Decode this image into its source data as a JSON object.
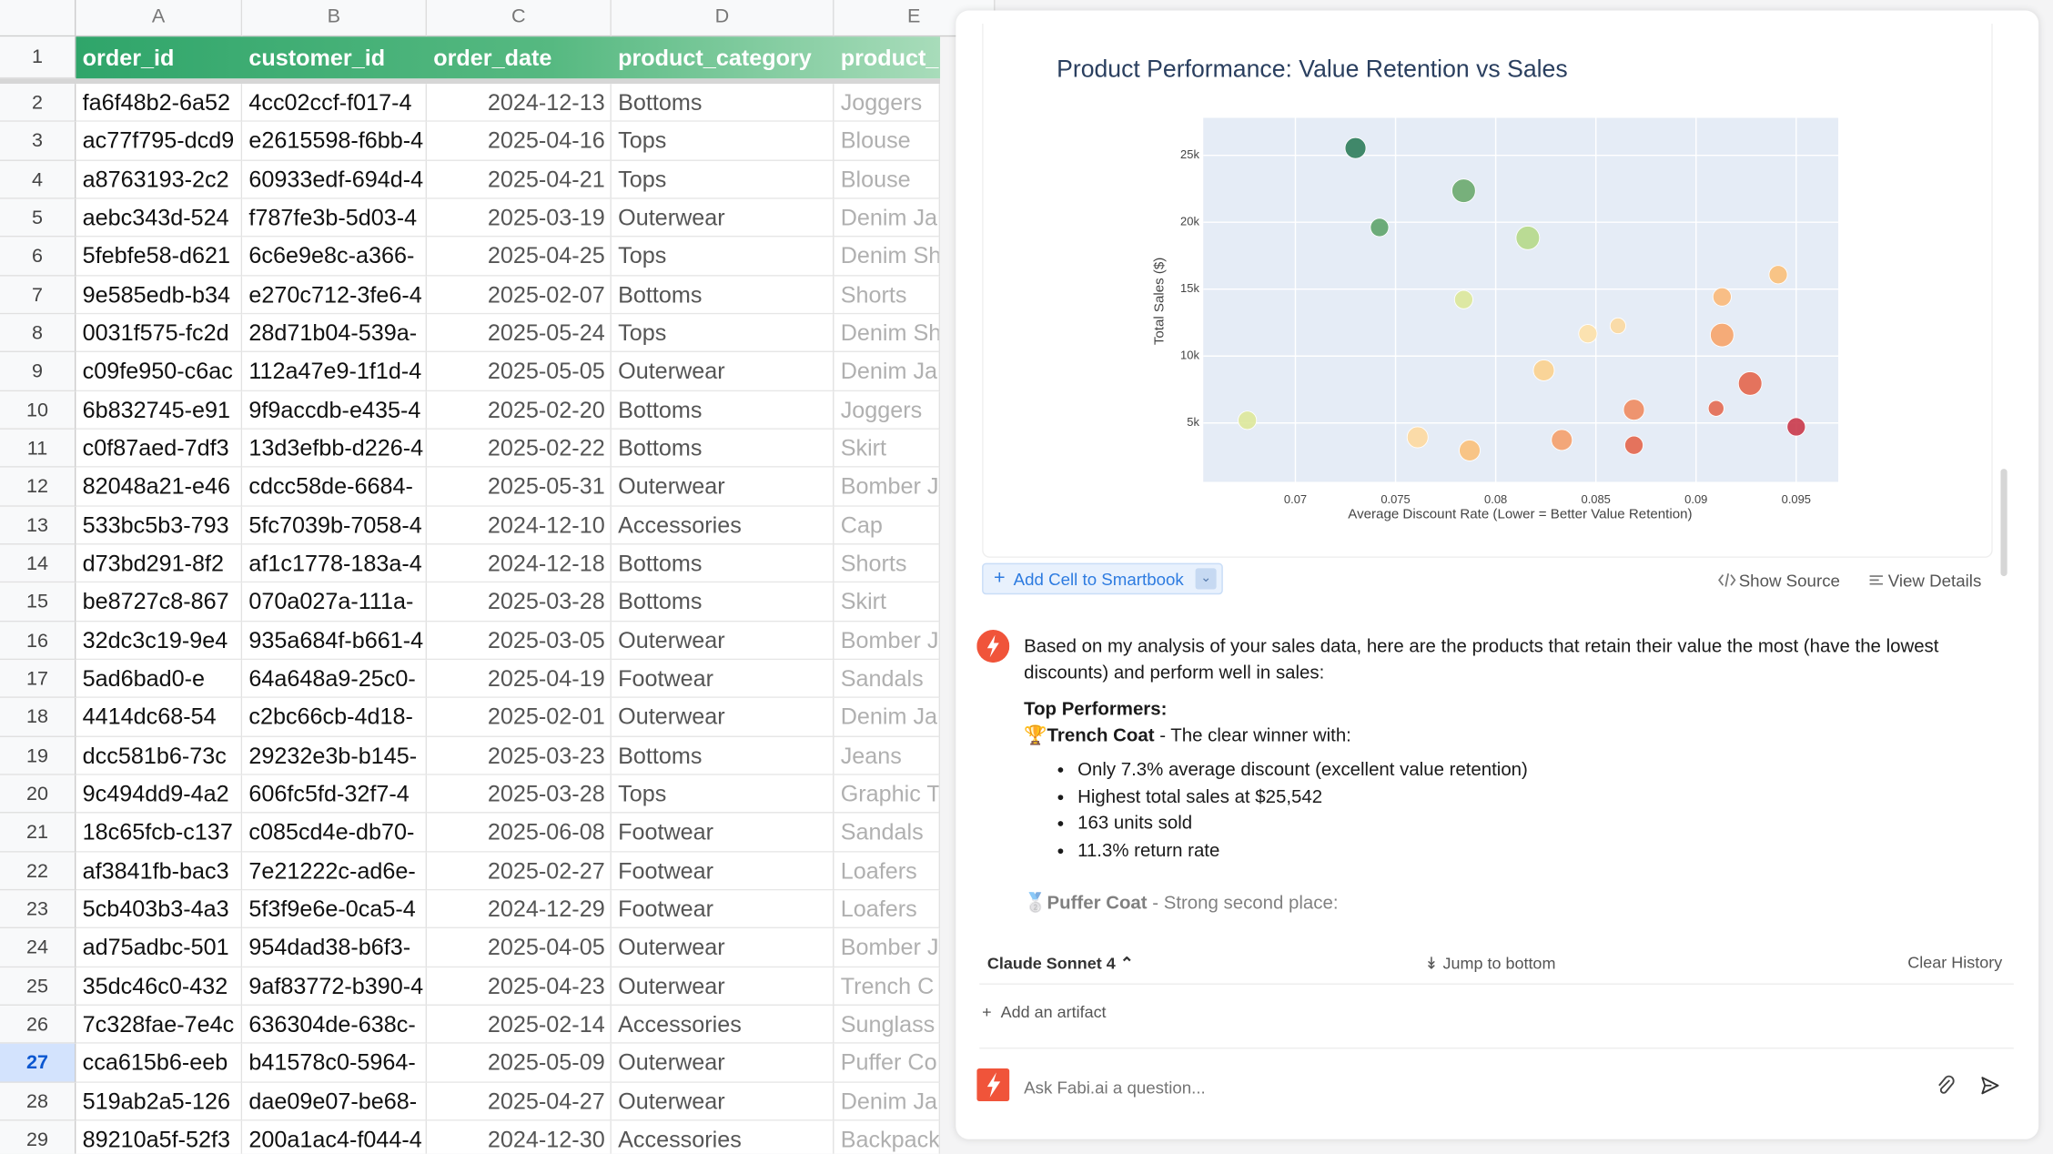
{
  "spreadsheet": {
    "columns": [
      "A",
      "B",
      "C",
      "D",
      "E"
    ],
    "header_row": {
      "num": "1",
      "cells": [
        "order_id",
        "customer_id",
        "order_date",
        "product_category",
        "product_"
      ]
    },
    "rows": [
      {
        "num": "2",
        "cells": [
          "fa6f48b2-6a52",
          "4cc02ccf-f017-4",
          "2024-12-13",
          "Bottoms",
          "Joggers"
        ]
      },
      {
        "num": "3",
        "cells": [
          "ac77f795-dcd9",
          "e2615598-f6bb-4",
          "2025-04-16",
          "Tops",
          "Blouse"
        ]
      },
      {
        "num": "4",
        "cells": [
          "a8763193-2c2",
          "60933edf-694d-4",
          "2025-04-21",
          "Tops",
          "Blouse"
        ]
      },
      {
        "num": "5",
        "cells": [
          "aebc343d-524",
          "f787fe3b-5d03-4",
          "2025-03-19",
          "Outerwear",
          "Denim Ja"
        ]
      },
      {
        "num": "6",
        "cells": [
          "5febfe58-d621",
          "6c6e9e8c-a366-",
          "2025-04-25",
          "Tops",
          "Denim Sh"
        ]
      },
      {
        "num": "7",
        "cells": [
          "9e585edb-b34",
          "e270c712-3fe6-4",
          "2025-02-07",
          "Bottoms",
          "Shorts"
        ]
      },
      {
        "num": "8",
        "cells": [
          "0031f575-fc2d",
          "28d71b04-539a-",
          "2025-05-24",
          "Tops",
          "Denim Sh"
        ]
      },
      {
        "num": "9",
        "cells": [
          "c09fe950-c6ac",
          "112a47e9-1f1d-4",
          "2025-05-05",
          "Outerwear",
          "Denim Ja"
        ]
      },
      {
        "num": "10",
        "cells": [
          "6b832745-e91",
          "9f9accdb-e435-4",
          "2025-02-20",
          "Bottoms",
          "Joggers"
        ]
      },
      {
        "num": "11",
        "cells": [
          "c0f87aed-7df3",
          "13d3efbb-d226-4",
          "2025-02-22",
          "Bottoms",
          "Skirt"
        ]
      },
      {
        "num": "12",
        "cells": [
          "82048a21-e46",
          "cdcc58de-6684-",
          "2025-05-31",
          "Outerwear",
          "Bomber J"
        ]
      },
      {
        "num": "13",
        "cells": [
          "533bc5b3-793",
          "5fc7039b-7058-4",
          "2024-12-10",
          "Accessories",
          "Cap"
        ]
      },
      {
        "num": "14",
        "cells": [
          "d73bd291-8f2",
          "af1c1778-183a-4",
          "2024-12-18",
          "Bottoms",
          "Shorts"
        ]
      },
      {
        "num": "15",
        "cells": [
          "be8727c8-867",
          "070a027a-111a-",
          "2025-03-28",
          "Bottoms",
          "Skirt"
        ]
      },
      {
        "num": "16",
        "cells": [
          "32dc3c19-9e4",
          "935a684f-b661-4",
          "2025-03-05",
          "Outerwear",
          "Bomber J"
        ]
      },
      {
        "num": "17",
        "cells": [
          "5ad6bad0-e",
          "64a648a9-25c0-",
          "2025-04-19",
          "Footwear",
          "Sandals"
        ]
      },
      {
        "num": "18",
        "cells": [
          "4414dc68-54",
          "c2bc66cb-4d18-",
          "2025-02-01",
          "Outerwear",
          "Denim Ja"
        ]
      },
      {
        "num": "19",
        "cells": [
          "dcc581b6-73c",
          "29232e3b-b145-",
          "2025-03-23",
          "Bottoms",
          "Jeans"
        ]
      },
      {
        "num": "20",
        "cells": [
          "9c494dd9-4a2",
          "606fc5fd-32f7-4",
          "2025-03-28",
          "Tops",
          "Graphic T"
        ]
      },
      {
        "num": "21",
        "cells": [
          "18c65fcb-c137",
          "c085cd4e-db70-",
          "2025-06-08",
          "Footwear",
          "Sandals"
        ]
      },
      {
        "num": "22",
        "cells": [
          "af3841fb-bac3",
          "7e21222c-ad6e-",
          "2025-02-27",
          "Footwear",
          "Loafers"
        ]
      },
      {
        "num": "23",
        "cells": [
          "5cb403b3-4a3",
          "5f3f9e6e-0ca5-4",
          "2024-12-29",
          "Footwear",
          "Loafers"
        ]
      },
      {
        "num": "24",
        "cells": [
          "ad75adbc-501",
          "954dad38-b6f3-",
          "2025-04-05",
          "Outerwear",
          "Bomber J"
        ]
      },
      {
        "num": "25",
        "cells": [
          "35dc46c0-432",
          "9af83772-b390-4",
          "2025-04-23",
          "Outerwear",
          "Trench C"
        ]
      },
      {
        "num": "26",
        "cells": [
          "7c328fae-7e4c",
          "636304de-638c-",
          "2025-02-14",
          "Accessories",
          "Sunglass"
        ]
      },
      {
        "num": "27",
        "cells": [
          "cca615b6-eeb",
          "b41578c0-5964-",
          "2025-05-09",
          "Outerwear",
          "Puffer Co"
        ]
      },
      {
        "num": "28",
        "cells": [
          "519ab2a5-126",
          "dae09e07-be68-",
          "2025-04-27",
          "Outerwear",
          "Denim Ja"
        ]
      },
      {
        "num": "29",
        "cells": [
          "89210a5f-52f3",
          "200a1ac4-f044-4",
          "2024-12-30",
          "Accessories",
          "Backpack"
        ]
      }
    ],
    "selected_row": "27"
  },
  "chart_data": {
    "type": "scatter",
    "title": "Product Performance: Value Retention vs Sales",
    "x_label": "Average Discount Rate (Lower = Better Value Retention)",
    "y_label": "Total Sales ($)",
    "x": [
      0.073,
      0.0784,
      0.0742,
      0.0816,
      0.0784,
      0.0941,
      0.0913,
      0.0861,
      0.0846,
      0.0913,
      0.0824,
      0.0927,
      0.0869,
      0.091,
      0.0676,
      0.095,
      0.0761,
      0.0833,
      0.0869,
      0.0787
    ],
    "y": [
      25542,
      22350,
      19610,
      18830,
      14220,
      16080,
      14420,
      12260,
      11670,
      11570,
      8930,
      7950,
      5990,
      6090,
      5200,
      4710,
      3930,
      3730,
      3340,
      2950
    ],
    "sizes": [
      163,
      206,
      125,
      206,
      125,
      125,
      125,
      92,
      125,
      206,
      163,
      206,
      163,
      92,
      125,
      125,
      163,
      163,
      125,
      163
    ],
    "colors": [
      "#2e7d5b",
      "#6aaa6e",
      "#5ea46b",
      "#b5d98a",
      "#dbe89a",
      "#f9c07a",
      "#f9b97a",
      "#fbd9a0",
      "#fde1a8",
      "#f6a46a",
      "#fbd28e",
      "#e3664d",
      "#ee8b60",
      "#e36a52",
      "#dde89a",
      "#c9394a",
      "#fdd9a0",
      "#f4a06c",
      "#e3664d",
      "#f9c07a"
    ],
    "xlim": [
      0.0654,
      0.0971
    ],
    "ylim": [
      600,
      27800
    ],
    "xticks": [
      0.07,
      0.075,
      0.08,
      0.085,
      0.09,
      0.095
    ],
    "yticks": [
      {
        "value": 5000,
        "label": "5k"
      },
      {
        "value": 10000,
        "label": "10k"
      },
      {
        "value": 15000,
        "label": "15k"
      },
      {
        "value": 20000,
        "label": "20k"
      },
      {
        "value": 25000,
        "label": "25k"
      }
    ],
    "grid": true,
    "plot_bg": "#e5ecf6"
  },
  "chat": {
    "actions": {
      "add_cell": "Add Cell to Smartbook",
      "show_source": "Show Source",
      "view_details": "View Details"
    },
    "message": {
      "intro": "Based on my analysis of your sales data, here are the products that retain their value the most (have the lowest discounts) and perform well in sales:",
      "heading": "Top Performers:",
      "first": {
        "icon": "🏆",
        "name": "Trench Coat",
        "desc": " - The clear winner with:"
      },
      "bullets": [
        "Only 7.3% average discount (excellent value retention)",
        "Highest total sales at $25,542",
        "163 units sold",
        "11.3% return rate"
      ],
      "second": {
        "icon": "🥈",
        "name": "Puffer Coat",
        "desc": " - Strong second place:"
      }
    },
    "footer": {
      "model": "Claude Sonnet 4",
      "jump": "Jump to bottom",
      "clear": "Clear History",
      "artifact": "Add an artifact",
      "placeholder": "Ask Fabi.ai a question..."
    }
  }
}
